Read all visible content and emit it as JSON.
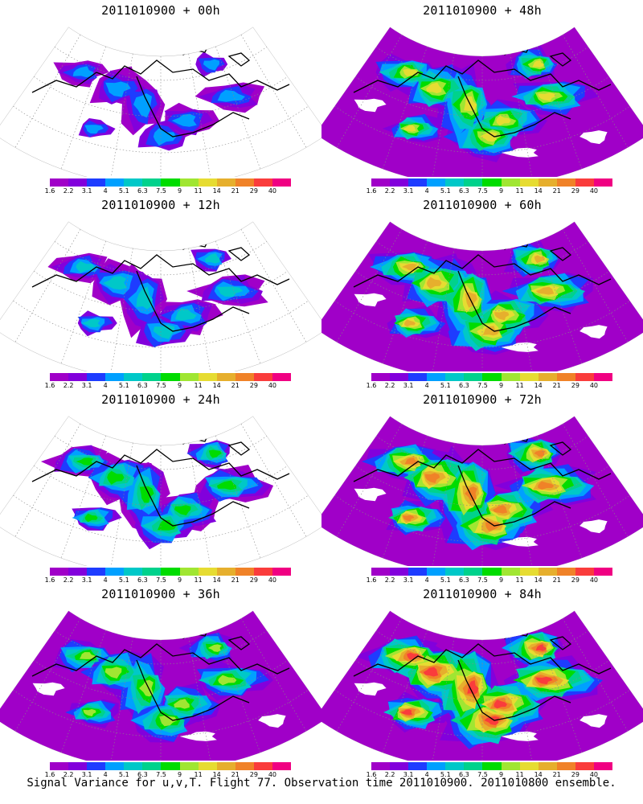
{
  "footer": "Signal Variance for u,v,T. Flight 77. Observation time 2011010900. 2011010800 ensemble.",
  "colorbar": {
    "labels": [
      "1.6",
      "2.2",
      "3.1",
      "4",
      "5.1",
      "6.3",
      "7.5",
      "9",
      "11",
      "14",
      "21",
      "29",
      "40"
    ],
    "colors": [
      "#a000c8",
      "#8200dc",
      "#1e3cff",
      "#00a0ff",
      "#00c8c8",
      "#00d28c",
      "#00dc00",
      "#a0e632",
      "#e6dc32",
      "#e6af2d",
      "#f08228",
      "#fa3c3c",
      "#f00082"
    ]
  },
  "panels": [
    {
      "title": "2011010900 + 00h",
      "intensity": 0.15
    },
    {
      "title": "2011010900 + 12h",
      "intensity": 0.3
    },
    {
      "title": "2011010900 + 24h",
      "intensity": 0.45
    },
    {
      "title": "2011010900 + 36h",
      "intensity": 0.6
    },
    {
      "title": "2011010900 + 48h",
      "intensity": 0.65
    },
    {
      "title": "2011010900 + 60h",
      "intensity": 0.8
    },
    {
      "title": "2011010900 + 72h",
      "intensity": 0.9
    },
    {
      "title": "2011010900 + 84h",
      "intensity": 1.0
    }
  ]
}
